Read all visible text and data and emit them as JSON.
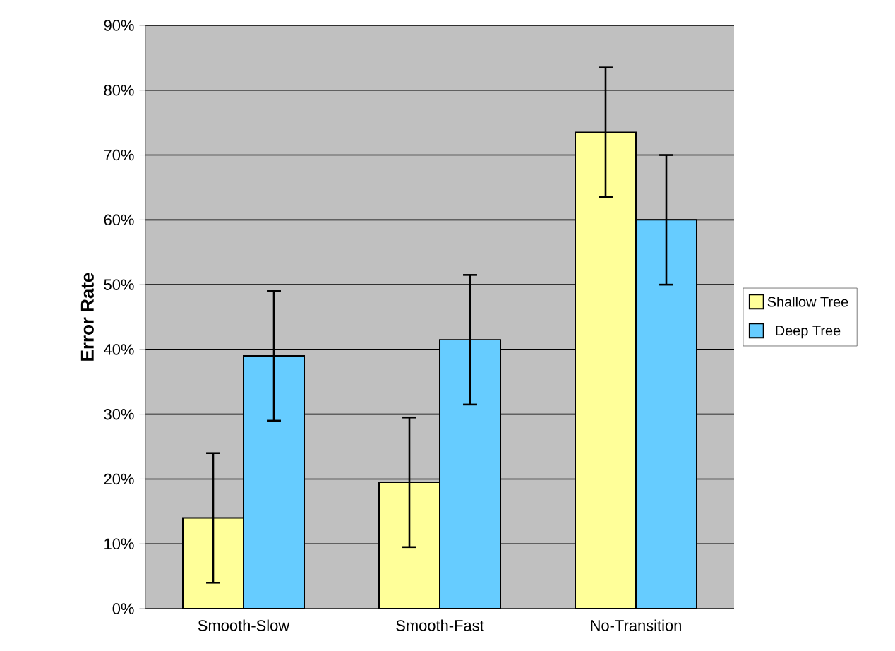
{
  "chart_data": {
    "type": "bar",
    "ylabel": "Error Rate",
    "categories": [
      "Smooth-Slow",
      "Smooth-Fast",
      "No-Transition"
    ],
    "series": [
      {
        "name": "Shallow Tree",
        "color": "#ffff99",
        "values": [
          14,
          19.5,
          73.5
        ],
        "errors": [
          10,
          10,
          10
        ]
      },
      {
        "name": "Deep Tree",
        "color": "#66ccff",
        "values": [
          39,
          41.5,
          60
        ],
        "errors": [
          10,
          10,
          10
        ]
      }
    ],
    "ylim": [
      0,
      90
    ],
    "yticks": [
      {
        "value": 0,
        "label": "0%"
      },
      {
        "value": 10,
        "label": "10%"
      },
      {
        "value": 20,
        "label": "20%"
      },
      {
        "value": 30,
        "label": "30%"
      },
      {
        "value": 40,
        "label": "40%"
      },
      {
        "value": 50,
        "label": "50%"
      },
      {
        "value": 60,
        "label": "60%"
      },
      {
        "value": 70,
        "label": "70%"
      },
      {
        "value": 80,
        "label": "80%"
      },
      {
        "value": 90,
        "label": "90%"
      }
    ],
    "grid": "y",
    "legend": "right"
  }
}
